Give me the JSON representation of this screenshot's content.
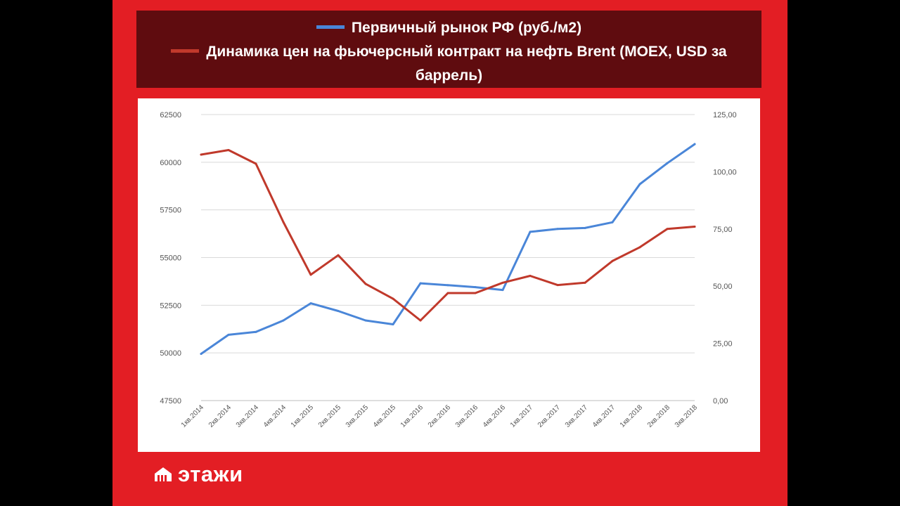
{
  "legend": {
    "series_1": "Первичный рынок РФ (руб./м2)",
    "series_2_line1": "Динамика цен на фьючерсный контракт на нефть Brent (MOEX, USD за",
    "series_2_line2": "баррель)"
  },
  "brand": {
    "name": "этажи",
    "icon": "house-logo-icon"
  },
  "colors": {
    "frame": "#e31e24",
    "legend_bg": "#5f0c0f",
    "series_1": "#4a86d8",
    "series_2": "#c0392b"
  },
  "chart_data": {
    "type": "line",
    "categories": [
      "1кв.2014",
      "2кв.2014",
      "3кв.2014",
      "4кв.2014",
      "1кв.2015",
      "2кв.2015",
      "3кв.2015",
      "4кв.2015",
      "1кв.2016",
      "2кв.2016",
      "3кв.2016",
      "4кв.2016",
      "1кв.2017",
      "2кв.2017",
      "3кв.2017",
      "4кв.2017",
      "1кв.2018",
      "2кв.2018",
      "3кв.2018"
    ],
    "series": [
      {
        "name": "Первичный рынок РФ (руб./м2)",
        "axis": "left",
        "color": "#4a86d8",
        "values": [
          49950,
          50950,
          51100,
          51700,
          52600,
          52200,
          51700,
          51500,
          53650,
          53550,
          53450,
          53300,
          56350,
          56500,
          56550,
          56850,
          58850,
          59950,
          60950
        ]
      },
      {
        "name": "Динамика цен на фьючерсный контракт на нефть Brent (MOEX, USD за баррель)",
        "axis": "right",
        "color": "#c0392b",
        "values": [
          107.5,
          109.5,
          103.5,
          78.0,
          55.0,
          63.5,
          51.0,
          44.5,
          35.0,
          47.0,
          47.0,
          51.5,
          54.5,
          50.5,
          51.5,
          61.0,
          67.0,
          75.0,
          76.0
        ]
      }
    ],
    "y_left": {
      "range": [
        47500,
        62500
      ],
      "ticks": [
        "47500",
        "50000",
        "52500",
        "55000",
        "57500",
        "60000",
        "62500"
      ]
    },
    "y_right": {
      "range": [
        0,
        125
      ],
      "ticks": [
        "0,00",
        "25,00",
        "50,00",
        "75,00",
        "100,00",
        "125,00"
      ]
    },
    "grid": true,
    "legend_position": "top"
  }
}
